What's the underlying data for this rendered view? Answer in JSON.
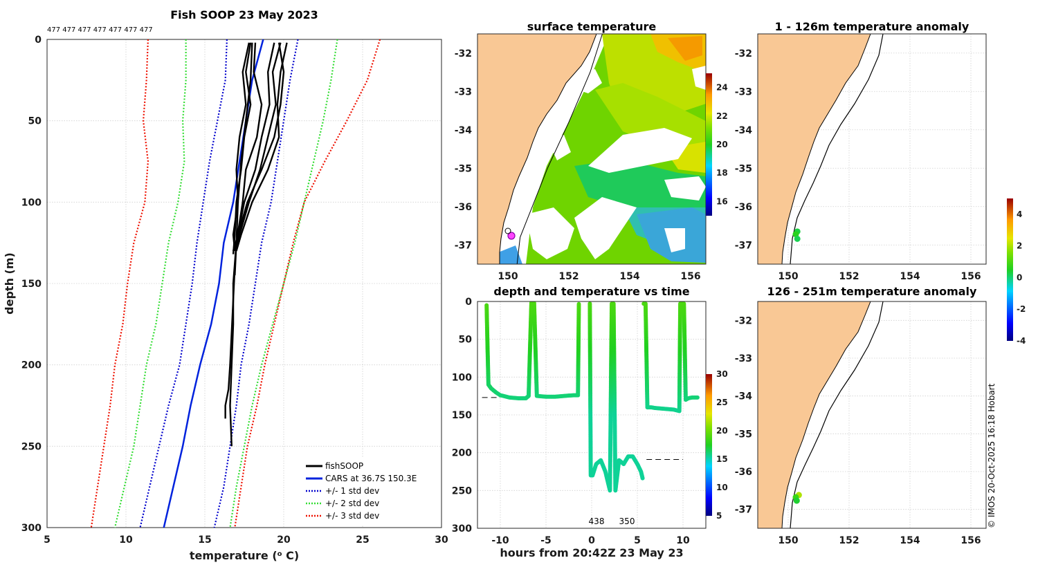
{
  "colors": {
    "fishsoop": "#000000",
    "cars": "#0022dd",
    "std1": "#0000cc",
    "std2": "#33dd33",
    "std3": "#ee1100",
    "land": "#f9c895"
  },
  "profile": {
    "title": "Fish SOOP 23 May 2023",
    "xlabel": "temperature (",
    "xlabel_sup": "o",
    "xlabel_end": " C)",
    "ylabel": "depth (m)",
    "counts_label": "477 477 477 477 477 477 477",
    "legend": [
      {
        "label": "fishSOOP"
      },
      {
        "label": "CARS at 36.7S 150.3E"
      },
      {
        "label": "+/- 1 std dev"
      },
      {
        "label": "+/- 2 std dev"
      },
      {
        "label": "+/- 3 std dev"
      }
    ]
  },
  "sst": {
    "title": "surface temperature",
    "colorbar_ticks": [
      "24",
      "22",
      "20",
      "18",
      "16"
    ]
  },
  "anom1": {
    "title": "1 - 126m temperature anomaly"
  },
  "anom2": {
    "title": "126 - 251m temperature anomaly"
  },
  "anom_colorbar_ticks": [
    "4",
    "2",
    "0",
    "-2",
    "-4"
  ],
  "time": {
    "title": "depth and temperature vs time",
    "xlabel": "hours from 20:42Z 23 May 23",
    "annotations": [
      "438",
      "350"
    ],
    "colorbar_ticks": [
      "30",
      "25",
      "20",
      "15",
      "10",
      "5"
    ]
  },
  "map_axes": {
    "lon_ticks": [
      "150",
      "152",
      "154",
      "156"
    ],
    "lat_ticks": [
      "-32",
      "-33",
      "-34",
      "-35",
      "-36",
      "-37"
    ]
  },
  "footer": "© IMOS 20-Oct-2025 16:18 Hobart",
  "chart_data": [
    {
      "type": "line",
      "id": "profile",
      "title": "Fish SOOP 23 May 2023",
      "xlabel": "temperature (o C)",
      "ylabel": "depth (m)",
      "xlim": [
        5,
        30
      ],
      "ylim": [
        0,
        300
      ],
      "y_reversed": true,
      "xticks": [
        5,
        10,
        15,
        20,
        25,
        30
      ],
      "yticks": [
        0,
        50,
        100,
        150,
        200,
        250,
        300
      ],
      "grid": true,
      "legend_position": "bottom-right",
      "depth": [
        0,
        25,
        50,
        75,
        100,
        125,
        150,
        175,
        200,
        225,
        250,
        275,
        300
      ],
      "series": [
        {
          "name": "CARS at 36.7S 150.3E",
          "style": "solid",
          "temp": [
            18.7,
            18.0,
            17.6,
            17.2,
            16.8,
            16.2,
            15.9,
            15.4,
            14.7,
            14.1,
            13.6,
            13.0,
            12.4
          ]
        },
        {
          "name": "+/- 1 std dev low",
          "style": "dotted",
          "group": 1,
          "temp": [
            16.4,
            16.3,
            15.8,
            15.3,
            14.9,
            14.5,
            14.2,
            13.8,
            13.4,
            12.7,
            12.1,
            11.5,
            10.9
          ]
        },
        {
          "name": "+/- 1 std dev high",
          "style": "dotted",
          "group": 1,
          "temp": [
            20.9,
            20.4,
            20.0,
            19.6,
            19.2,
            18.6,
            18.2,
            17.8,
            17.3,
            17.0,
            16.6,
            16.2,
            15.6
          ]
        },
        {
          "name": "+/- 2 std dev low",
          "style": "dotted",
          "group": 2,
          "temp": [
            13.8,
            13.8,
            13.6,
            13.7,
            13.3,
            12.7,
            12.3,
            11.9,
            11.3,
            10.9,
            10.5,
            9.9,
            9.3
          ]
        },
        {
          "name": "+/- 2 std dev high",
          "style": "dotted",
          "group": 2,
          "temp": [
            23.4,
            23.0,
            22.5,
            21.9,
            21.3,
            20.7,
            20.0,
            19.3,
            18.6,
            18.0,
            17.5,
            17.0,
            16.6
          ]
        },
        {
          "name": "+/- 3 std dev low",
          "style": "dotted",
          "group": 3,
          "temp": [
            11.4,
            11.3,
            11.1,
            11.4,
            11.2,
            10.5,
            10.1,
            9.8,
            9.3,
            9.0,
            8.6,
            8.2,
            7.8
          ]
        },
        {
          "name": "+/- 3 std dev high",
          "style": "dotted",
          "group": 3,
          "temp": [
            26.1,
            25.3,
            24.0,
            22.6,
            21.3,
            20.6,
            20.0,
            19.4,
            18.8,
            18.3,
            17.7,
            17.3,
            16.9
          ]
        }
      ],
      "fishsoop_casts": [
        {
          "depth": [
            2,
            20,
            40,
            60,
            80,
            100,
            120,
            130
          ],
          "temp": [
            17.8,
            17.4,
            17.6,
            17.2,
            17.0,
            17.1,
            16.8,
            16.9
          ]
        },
        {
          "depth": [
            2,
            20,
            40,
            60,
            80,
            100,
            120,
            132
          ],
          "temp": [
            17.9,
            17.6,
            17.9,
            17.5,
            17.3,
            17.0,
            16.9,
            16.8
          ]
        },
        {
          "depth": [
            2,
            20,
            40,
            60,
            80,
            100,
            125,
            145
          ],
          "temp": [
            18.2,
            18.1,
            18.6,
            18.3,
            17.6,
            17.4,
            17.0,
            16.9
          ]
        },
        {
          "depth": [
            2,
            20,
            40,
            60,
            80,
            100,
            120,
            130
          ],
          "temp": [
            19.4,
            19.0,
            19.1,
            18.6,
            18.2,
            17.5,
            17.1,
            16.8
          ]
        },
        {
          "depth": [
            2,
            20,
            40,
            60,
            80,
            100,
            120,
            128
          ],
          "temp": [
            19.8,
            19.3,
            19.5,
            19.0,
            18.5,
            17.8,
            17.2,
            17.0
          ]
        },
        {
          "depth": [
            2,
            20,
            40,
            60,
            80,
            100,
            120,
            130
          ],
          "temp": [
            20.2,
            19.8,
            19.6,
            19.7,
            19.0,
            18.0,
            17.3,
            17.0
          ]
        },
        {
          "depth": [
            2,
            20,
            40,
            60,
            80,
            100,
            120,
            130
          ],
          "temp": [
            19.7,
            20.0,
            19.8,
            19.4,
            18.6,
            17.7,
            17.1,
            16.9
          ]
        },
        {
          "depth": [
            2,
            25,
            50,
            75,
            100,
            125,
            150,
            175,
            200,
            225,
            250
          ],
          "temp": [
            18.0,
            17.9,
            17.6,
            17.3,
            17.1,
            17.0,
            16.8,
            16.8,
            16.7,
            16.6,
            16.7
          ]
        },
        {
          "depth": [
            140,
            160,
            180,
            200,
            215,
            225,
            233
          ],
          "temp": [
            16.9,
            16.8,
            16.7,
            16.6,
            16.5,
            16.3,
            16.3
          ]
        }
      ]
    },
    {
      "type": "scatter",
      "id": "depth_time",
      "title": "depth and temperature vs time",
      "xlabel": "hours from 20:42Z 23 May 23",
      "xlim": [
        -12.5,
        12.5
      ],
      "ylim": [
        0,
        300
      ],
      "y_reversed": true,
      "xticks": [
        -10,
        -5,
        0,
        5,
        10
      ],
      "yticks": [
        0,
        50,
        100,
        150,
        200,
        250,
        300
      ],
      "colorbar": {
        "min": 5,
        "max": 30,
        "ticks": [
          5,
          10,
          15,
          20,
          25,
          30
        ]
      },
      "tracks": [
        {
          "t": [
            -11.5,
            -11.4,
            -11.3,
            -11.0,
            -10.5,
            -10.0,
            -9.0,
            -8.0,
            -7.2,
            -6.9,
            -6.6,
            -6.3,
            -6.0,
            -5.0,
            -4.0,
            -3.0,
            -2.0,
            -1.5,
            -1.4
          ],
          "depth": [
            5,
            60,
            110,
            115,
            120,
            124,
            127,
            128,
            128,
            125,
            2,
            2,
            125,
            126,
            126,
            125,
            124,
            124,
            2
          ]
        },
        {
          "t": [
            -0.2,
            -0.1,
            0.1,
            0.5,
            1.0,
            1.5,
            2.0,
            2.2,
            2.4,
            2.6,
            3.0,
            3.5,
            4.0,
            4.5,
            5.0,
            5.4,
            5.6
          ],
          "depth": [
            3,
            230,
            230,
            215,
            210,
            225,
            250,
            3,
            3,
            250,
            210,
            215,
            205,
            205,
            215,
            225,
            235
          ]
        },
        {
          "t": [
            5.7,
            5.9,
            6.1,
            6.2,
            6.5,
            7.0,
            8.0,
            9.0,
            9.6,
            9.7,
            10.1,
            10.3,
            10.6,
            11.0,
            11.7
          ],
          "depth": [
            3,
            3,
            140,
            140,
            140,
            141,
            142,
            143,
            145,
            3,
            3,
            130,
            128,
            127,
            127
          ]
        }
      ],
      "cars_ref": [
        {
          "t": [
            -12.0,
            -10.0
          ],
          "depth": 127
        },
        {
          "t": [
            6.0,
            10.0
          ],
          "depth": 209
        }
      ],
      "annotations": [
        {
          "text": "438",
          "t": 0.5
        },
        {
          "text": "350",
          "t": 3.9
        }
      ]
    },
    {
      "type": "heatmap",
      "id": "sst_map",
      "title": "surface temperature",
      "lon_range": [
        149.0,
        156.5
      ],
      "lat_range": [
        -37.5,
        -31.5
      ],
      "colorbar": {
        "min": 15,
        "max": 25,
        "ticks": [
          16,
          18,
          20,
          22,
          24
        ]
      },
      "vessel_track": [
        [
          153.1,
          -31.5
        ],
        [
          152.7,
          -32.5
        ],
        [
          152.0,
          -33.8
        ],
        [
          151.3,
          -35.0
        ],
        [
          150.8,
          -36.0
        ],
        [
          150.4,
          -36.8
        ],
        [
          150.3,
          -37.5
        ]
      ]
    },
    {
      "type": "scatter",
      "id": "anomaly_maps",
      "titles": [
        "1 - 126m temperature anomaly",
        "126 - 251m temperature anomaly"
      ],
      "colorbar": {
        "min": -4,
        "max": 5,
        "ticks": [
          -4,
          -2,
          0,
          2,
          4
        ]
      },
      "points_upper": [
        {
          "lon": 150.3,
          "lat": -36.65,
          "anomaly": 0.3
        },
        {
          "lon": 150.25,
          "lat": -36.72,
          "anomaly": 0.6
        },
        {
          "lon": 150.3,
          "lat": -36.84,
          "anomaly": 0.2
        }
      ],
      "points_lower": [
        {
          "lon": 150.35,
          "lat": -36.62,
          "anomaly": 2.0
        },
        {
          "lon": 150.25,
          "lat": -36.68,
          "anomaly": 0.8
        },
        {
          "lon": 150.28,
          "lat": -36.77,
          "anomaly": 0.4
        }
      ]
    }
  ]
}
